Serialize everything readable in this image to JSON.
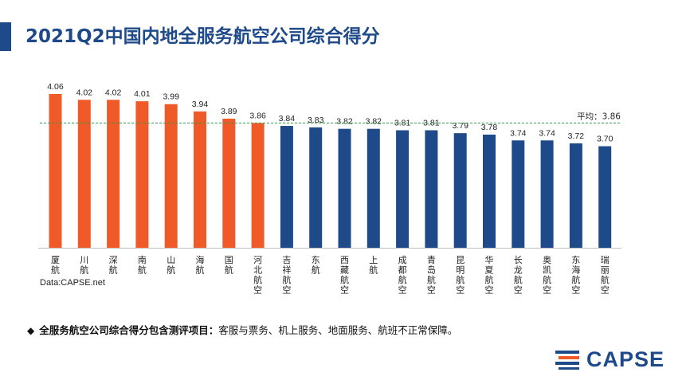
{
  "title": "2021Q2中国内地全服务航空公司综合得分",
  "source": "Data:CAPSE.net",
  "note": {
    "bold": "全服务航空公司综合得分包含测评项目：",
    "text": "客服与票务、机上服务、地面服务、航班不正常保障。"
  },
  "logo": {
    "text": "CAPSE"
  },
  "chart_data": {
    "type": "bar",
    "categories": [
      "厦航",
      "川航",
      "深航",
      "南航",
      "山航",
      "海航",
      "国航",
      "河北航空",
      "吉祥航空",
      "东航",
      "西藏航空",
      "上航",
      "成都航空",
      "青岛航空",
      "昆明航空",
      "华夏航空",
      "长龙航空",
      "奥凯航空",
      "东海航空",
      "瑞丽航空"
    ],
    "values": [
      4.06,
      4.02,
      4.02,
      4.01,
      3.99,
      3.94,
      3.89,
      3.86,
      3.84,
      3.83,
      3.82,
      3.82,
      3.81,
      3.81,
      3.79,
      3.78,
      3.74,
      3.74,
      3.72,
      3.7
    ],
    "colors": [
      "#f05a28",
      "#f05a28",
      "#f05a28",
      "#f05a28",
      "#f05a28",
      "#f05a28",
      "#f05a28",
      "#f05a28",
      "#1f4a8a",
      "#1f4a8a",
      "#1f4a8a",
      "#1f4a8a",
      "#1f4a8a",
      "#1f4a8a",
      "#1f4a8a",
      "#1f4a8a",
      "#1f4a8a",
      "#1f4a8a",
      "#1f4a8a",
      "#1f4a8a"
    ],
    "average": {
      "label": "平均：3.86",
      "value": 3.86,
      "color": "#2e9e4a"
    },
    "xlabel": "",
    "ylabel": "",
    "grid": false,
    "legend": "none"
  }
}
